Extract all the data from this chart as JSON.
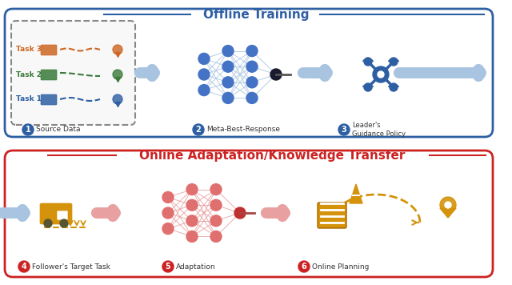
{
  "title_offline": "Offline Training",
  "title_online": "Online Adaptation/Knowledge Transfer",
  "offline_box_color": "#2E5FA3",
  "online_box_color": "#CC2222",
  "bg_color": "#FFFFFF",
  "label1": "Source Data",
  "label2": "Meta-Best-Response",
  "label3": "Leader's\nGuidance Policy",
  "label4": "Follower's Target Task",
  "label5": "Adaptation",
  "label6": "Online Planning",
  "task1_color": "#2E5FA3",
  "task2_color": "#3A7A3A",
  "task3_color": "#CC6622",
  "node_color_offline": "#4472C4",
  "node_color_online": "#E07070",
  "output_node_color": "#1A1A2E",
  "output_node_color_online": "#C03030",
  "arrow_color_offline": "#A8C4E0",
  "arrow_color_online": "#E8A0A0",
  "badge_color_offline": "#2E5FA3",
  "badge_color_online": "#CC2222",
  "follower_truck_color": "#D4930A",
  "construction_color": "#D4930A"
}
